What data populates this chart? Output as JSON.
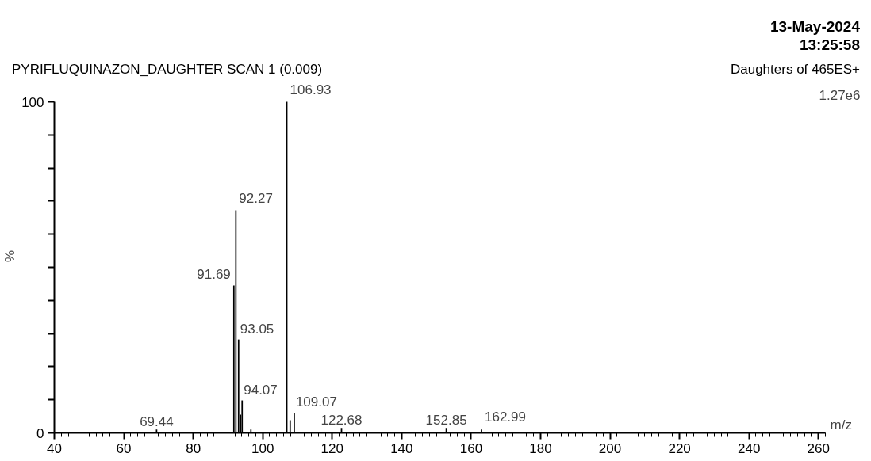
{
  "chart_data": {
    "type": "bar",
    "title": "PYRIFLUQUINAZON_DAUGHTER SCAN 1 (0.009)",
    "xlabel": "m/z",
    "ylabel": "%",
    "annotations": [
      "13-May-2024",
      "13:25:58",
      "Daughters of 465ES+",
      "1.27e6",
      {
        "text": "69.44",
        "x": 69.44,
        "y": 1
      },
      {
        "text": "91.69",
        "x": 91.69,
        "y": 44.5
      },
      {
        "text": "92.27",
        "x": 92.27,
        "y": 67.2
      },
      {
        "text": "93.05",
        "x": 93.05,
        "y": 28.2
      },
      {
        "text": "94.07",
        "x": 94.07,
        "y": 9.8
      },
      {
        "text": "106.93",
        "x": 106.93,
        "y": 100
      },
      {
        "text": "109.07",
        "x": 109.07,
        "y": 6
      },
      {
        "text": "122.68",
        "x": 122.68,
        "y": 1.5
      },
      {
        "text": "152.85",
        "x": 152.85,
        "y": 1.5
      },
      {
        "text": "162.99",
        "x": 162.99,
        "y": 1
      }
    ],
    "x": [
      69.44,
      91.69,
      92.27,
      93.05,
      93.6,
      94.07,
      96.6,
      106.93,
      107.9,
      109.07,
      122.68,
      152.85,
      162.99
    ],
    "values": [
      1,
      44.5,
      67.2,
      28.2,
      5.5,
      9.8,
      1,
      100,
      3.8,
      6,
      1.5,
      1.5,
      1
    ],
    "color": "#000000",
    "xlim": [
      40,
      262
    ],
    "xticks": [
      40,
      60,
      80,
      100,
      120,
      140,
      160,
      180,
      200,
      220,
      240,
      260
    ],
    "ylim": [
      0,
      100
    ],
    "yticks": [
      0,
      {
        "value": 10,
        "label": null
      },
      {
        "value": 20,
        "label": null
      },
      {
        "value": 30,
        "label": null
      },
      {
        "value": 40,
        "label": null
      },
      {
        "value": 50,
        "label": null
      },
      {
        "value": 60,
        "label": null
      },
      {
        "value": 70,
        "label": null
      },
      {
        "value": 80,
        "label": null
      },
      {
        "value": 90,
        "label": null
      },
      100
    ],
    "grid": false,
    "legend": false
  }
}
